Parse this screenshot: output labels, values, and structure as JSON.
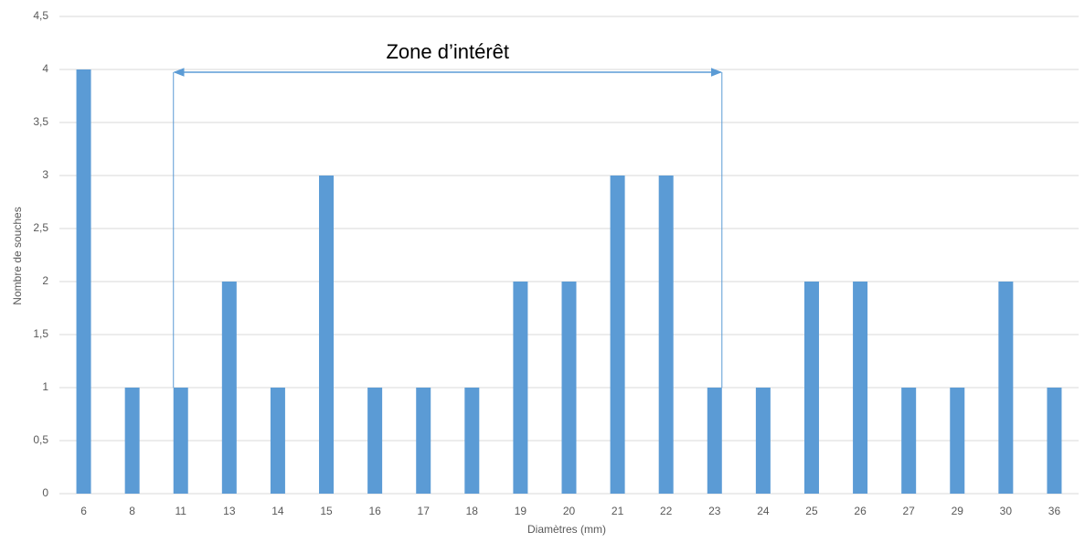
{
  "chart_data": {
    "type": "bar",
    "categories": [
      "6",
      "8",
      "11",
      "13",
      "14",
      "15",
      "16",
      "17",
      "18",
      "19",
      "20",
      "21",
      "22",
      "23",
      "24",
      "25",
      "26",
      "27",
      "29",
      "30",
      "36"
    ],
    "values": [
      4,
      1,
      1,
      2,
      1,
      3,
      1,
      1,
      1,
      2,
      2,
      3,
      3,
      1,
      1,
      2,
      2,
      1,
      1,
      2,
      1
    ],
    "color": "#5b9bd5",
    "xlabel": "Diamètres (mm)",
    "ylabel": "Nombre de souches",
    "annotation": "Zone d’intérêt",
    "ylim": [
      0,
      4.5
    ],
    "yticks": [
      0,
      {
        "value": 0.5,
        "label": "0,5"
      },
      1,
      {
        "value": 1.5,
        "label": "1,5"
      },
      2,
      {
        "value": 2.5,
        "label": "2,5"
      },
      3,
      {
        "value": 3.5,
        "label": "3,5"
      },
      4,
      {
        "value": 4.5,
        "label": "4,5"
      }
    ],
    "grid": true
  }
}
